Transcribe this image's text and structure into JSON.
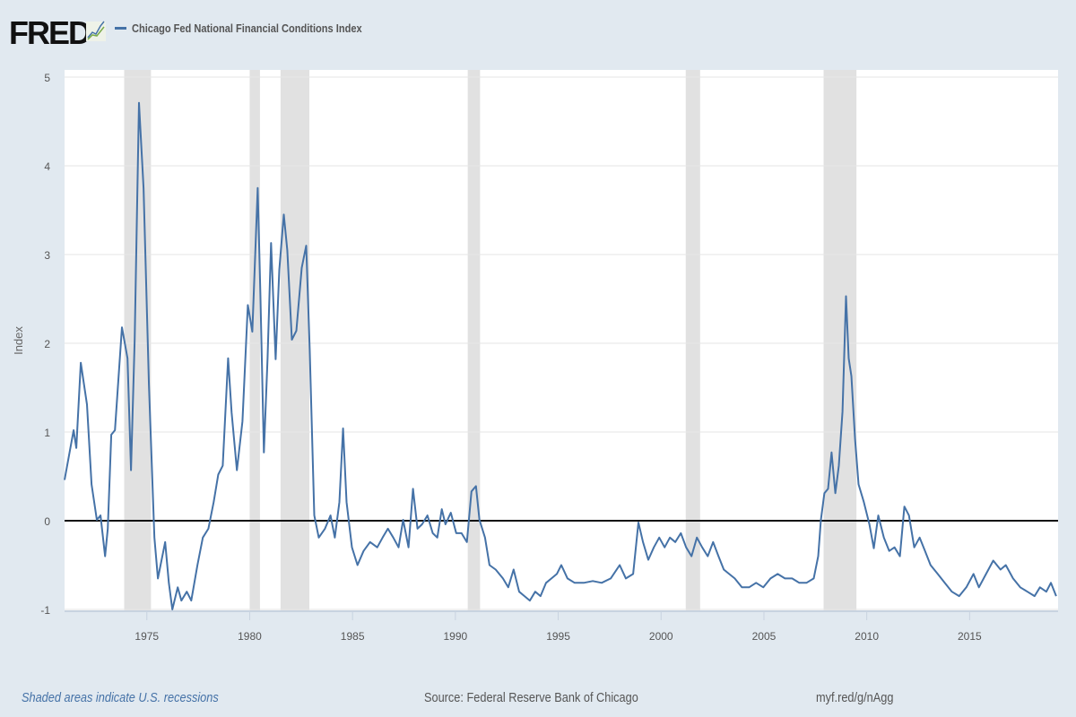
{
  "header": {
    "logo": "FRED",
    "series_label": "Chicago Fed National Financial Conditions Index"
  },
  "footer": {
    "note": "Shaded areas indicate U.S. recessions",
    "source": "Source: Federal Reserve Bank of Chicago",
    "link": "myf.red/g/nAgg"
  },
  "colors": {
    "line": "#4572a7",
    "recession": "#e1e1e1",
    "background": "#e1e9f0"
  },
  "chart_data": {
    "type": "line",
    "title": "Chicago Fed National Financial Conditions Index",
    "xlabel": "",
    "ylabel": "Index",
    "xlim": [
      1971.0,
      2019.3
    ],
    "ylim": [
      -1,
      5
    ],
    "grid": true,
    "legend": "top-left",
    "x_ticks": [
      "1975",
      "1980",
      "1985",
      "1990",
      "1995",
      "2000",
      "2005",
      "2010",
      "2015"
    ],
    "y_ticks": [
      "-1",
      "0",
      "1",
      "2",
      "3",
      "4",
      "5"
    ],
    "recessions": [
      [
        1973.9,
        1975.2
      ],
      [
        1980.0,
        1980.5
      ],
      [
        1981.5,
        1982.9
      ],
      [
        1990.6,
        1991.2
      ],
      [
        2001.2,
        2001.9
      ],
      [
        2007.9,
        2009.5
      ]
    ],
    "series": [
      {
        "name": "Chicago Fed National Financial Conditions Index",
        "x": [
          1971.0,
          1971.44,
          1971.57,
          1971.79,
          1972.09,
          1972.31,
          1972.57,
          1972.75,
          1972.97,
          1973.1,
          1973.27,
          1973.45,
          1973.79,
          1974.06,
          1974.23,
          1974.41,
          1974.62,
          1974.84,
          1975.1,
          1975.37,
          1975.54,
          1975.89,
          1976.07,
          1976.24,
          1976.5,
          1976.68,
          1976.94,
          1977.16,
          1977.46,
          1977.72,
          1977.99,
          1978.25,
          1978.47,
          1978.69,
          1978.95,
          1979.12,
          1979.38,
          1979.65,
          1979.91,
          1980.13,
          1980.39,
          1980.52,
          1980.69,
          1980.87,
          1981.04,
          1981.26,
          1981.44,
          1981.66,
          1981.83,
          1982.05,
          1982.27,
          1982.53,
          1982.75,
          1982.92,
          1983.14,
          1983.36,
          1983.66,
          1983.93,
          1984.14,
          1984.36,
          1984.54,
          1984.71,
          1984.97,
          1985.24,
          1985.54,
          1985.85,
          1986.2,
          1986.46,
          1986.72,
          1986.98,
          1987.24,
          1987.46,
          1987.72,
          1987.94,
          1988.16,
          1988.38,
          1988.64,
          1988.9,
          1989.12,
          1989.34,
          1989.52,
          1989.78,
          1990.04,
          1990.3,
          1990.56,
          1990.78,
          1991.0,
          1991.17,
          1991.44,
          1991.66,
          1991.96,
          1992.31,
          1992.57,
          1992.83,
          1993.1,
          1993.36,
          1993.62,
          1993.88,
          1994.14,
          1994.41,
          1994.67,
          1994.93,
          1995.15,
          1995.45,
          1995.8,
          1996.24,
          1996.68,
          1997.11,
          1997.55,
          1997.99,
          1998.29,
          1998.64,
          1998.9,
          1999.12,
          1999.38,
          1999.65,
          1999.91,
          2000.17,
          2000.43,
          2000.69,
          2000.96,
          2001.22,
          2001.48,
          2001.74,
          2002.0,
          2002.27,
          2002.53,
          2002.79,
          2003.05,
          2003.31,
          2003.58,
          2003.93,
          2004.28,
          2004.62,
          2004.97,
          2005.32,
          2005.67,
          2006.02,
          2006.37,
          2006.72,
          2007.07,
          2007.42,
          2007.64,
          2007.77,
          2007.94,
          2008.12,
          2008.29,
          2008.47,
          2008.64,
          2008.82,
          2008.99,
          2009.12,
          2009.25,
          2009.43,
          2009.6,
          2009.86,
          2010.13,
          2010.34,
          2010.56,
          2010.83,
          2011.09,
          2011.35,
          2011.61,
          2011.83,
          2012.05,
          2012.31,
          2012.57,
          2012.83,
          2013.1,
          2013.45,
          2013.79,
          2014.14,
          2014.49,
          2014.84,
          2015.19,
          2015.45,
          2015.8,
          2016.15,
          2016.5,
          2016.76,
          2017.11,
          2017.46,
          2017.81,
          2018.16,
          2018.42,
          2018.73,
          2018.95,
          2019.21
        ],
        "y": [
          0.46,
          1.02,
          0.82,
          1.78,
          1.31,
          0.41,
          0.01,
          0.06,
          -0.4,
          -0.09,
          0.97,
          1.02,
          2.18,
          1.83,
          0.57,
          2.04,
          4.71,
          3.75,
          1.53,
          -0.19,
          -0.65,
          -0.24,
          -0.7,
          -1.0,
          -0.75,
          -0.9,
          -0.8,
          -0.9,
          -0.5,
          -0.19,
          -0.09,
          0.21,
          0.52,
          0.62,
          1.83,
          1.22,
          0.57,
          1.12,
          2.43,
          2.13,
          3.75,
          2.55,
          0.77,
          1.83,
          3.13,
          1.82,
          2.83,
          3.45,
          3.05,
          2.04,
          2.14,
          2.85,
          3.1,
          1.93,
          0.06,
          -0.19,
          -0.09,
          0.06,
          -0.19,
          0.21,
          1.04,
          0.21,
          -0.3,
          -0.5,
          -0.34,
          -0.24,
          -0.3,
          -0.19,
          -0.09,
          -0.19,
          -0.3,
          0.01,
          -0.3,
          0.36,
          -0.09,
          -0.04,
          0.06,
          -0.14,
          -0.19,
          0.13,
          -0.04,
          0.09,
          -0.14,
          -0.14,
          -0.24,
          0.33,
          0.39,
          0.01,
          -0.19,
          -0.5,
          -0.55,
          -0.65,
          -0.75,
          -0.55,
          -0.8,
          -0.85,
          -0.9,
          -0.8,
          -0.85,
          -0.7,
          -0.65,
          -0.6,
          -0.5,
          -0.65,
          -0.7,
          -0.7,
          -0.68,
          -0.7,
          -0.65,
          -0.5,
          -0.65,
          -0.6,
          -0.02,
          -0.24,
          -0.44,
          -0.3,
          -0.19,
          -0.3,
          -0.19,
          -0.24,
          -0.14,
          -0.3,
          -0.4,
          -0.19,
          -0.3,
          -0.4,
          -0.24,
          -0.4,
          -0.55,
          -0.6,
          -0.65,
          -0.75,
          -0.75,
          -0.7,
          -0.75,
          -0.65,
          -0.6,
          -0.65,
          -0.65,
          -0.7,
          -0.7,
          -0.65,
          -0.4,
          0.01,
          0.31,
          0.36,
          0.77,
          0.31,
          0.62,
          1.23,
          2.53,
          1.83,
          1.63,
          0.92,
          0.41,
          0.21,
          -0.04,
          -0.31,
          0.06,
          -0.19,
          -0.34,
          -0.3,
          -0.4,
          0.16,
          0.06,
          -0.3,
          -0.19,
          -0.34,
          -0.5,
          -0.6,
          -0.7,
          -0.8,
          -0.85,
          -0.75,
          -0.6,
          -0.75,
          -0.6,
          -0.45,
          -0.55,
          -0.5,
          -0.65,
          -0.75,
          -0.8,
          -0.85,
          -0.75,
          -0.8,
          -0.7,
          -0.85
        ]
      }
    ]
  }
}
